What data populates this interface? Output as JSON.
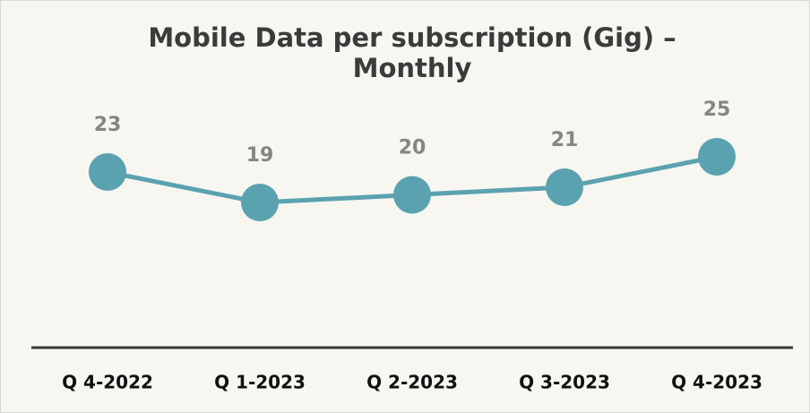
{
  "chart_data": {
    "type": "line",
    "title": [
      "Mobile Data per subscription (Gig) –",
      "Monthly"
    ],
    "categories": [
      "Q 4-2022",
      "Q 1-2023",
      "Q 2-2023",
      "Q 3-2023",
      "Q 4-2023"
    ],
    "series": [
      {
        "name": "Mobile Data per subscription",
        "color": "#5aa2af",
        "values": [
          23,
          19,
          20,
          21,
          25
        ]
      }
    ]
  }
}
